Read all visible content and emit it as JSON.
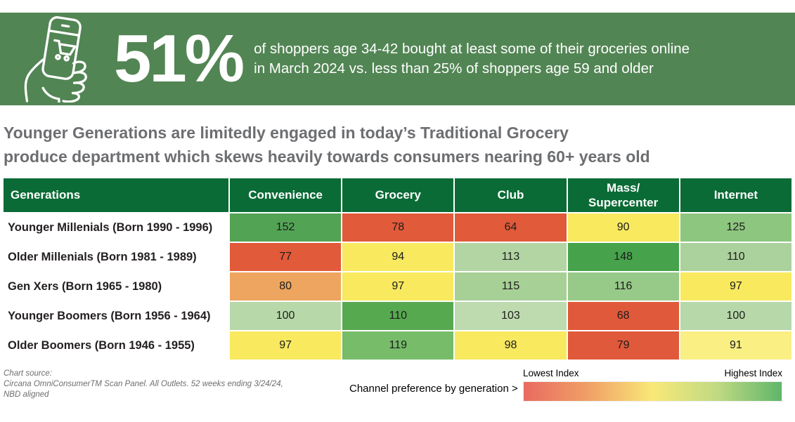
{
  "banner": {
    "stat": "51%",
    "description": "of shoppers age 34-42 bought at least some of their groceries online\nin March 2024 vs. less than 25% of shoppers age 59 and older",
    "icon": "phone-shopping-cart-icon",
    "background": "#528554"
  },
  "headline": "Younger Generations are limitedly engaged in today’s Traditional Grocery\nproduce department which skews heavily towards consumers nearing 60+ years old",
  "chart_data": {
    "type": "heatmap",
    "title": "Channel preference by generation",
    "columns": [
      "Generations",
      "Convenience",
      "Grocery",
      "Club",
      "Mass/\nSupercenter",
      "Internet"
    ],
    "rows": [
      {
        "label": "Younger Millenials (Born 1990 - 1996)",
        "values": [
          152,
          78,
          64,
          90,
          125
        ],
        "colors": [
          "#53a354",
          "#e15a39",
          "#e15a39",
          "#f8e95f",
          "#8dc67f"
        ]
      },
      {
        "label": "Older Millenials (Born 1981 - 1989)",
        "values": [
          77,
          94,
          113,
          148,
          110
        ],
        "colors": [
          "#e15a39",
          "#f8e95f",
          "#b2d5a3",
          "#46a34b",
          "#abd29c"
        ]
      },
      {
        "label": "Gen Xers (Born 1965 - 1980)",
        "values": [
          80,
          97,
          115,
          116,
          97
        ],
        "colors": [
          "#eda55f",
          "#f8e95f",
          "#a7d096",
          "#97c988",
          "#f8e95f"
        ]
      },
      {
        "label": "Younger Boomers (Born 1956 - 1964)",
        "values": [
          100,
          110,
          103,
          68,
          100
        ],
        "colors": [
          "#b7d8a9",
          "#57a950",
          "#bedbb0",
          "#e0593a",
          "#b7d8a9"
        ]
      },
      {
        "label": "Older Boomers (Born 1946 - 1955)",
        "values": [
          97,
          119,
          98,
          79,
          91
        ],
        "colors": [
          "#f8e95f",
          "#76bc69",
          "#f8e95f",
          "#e0593a",
          "#f9ef83"
        ]
      }
    ],
    "legend": {
      "lowest_label": "Lowest Index",
      "highest_label": "Highest Index",
      "gradient": [
        "#e96a60",
        "#f0a066",
        "#f8e878",
        "#c0da82",
        "#5fb66b"
      ]
    },
    "header_background": "#0a6b36"
  },
  "footer": {
    "source_lines": "Chart source:\nCircana OmniConsumerTM Scan Panel. All Outlets. 52 weeks ending 3/24/24,\nNBD aligned",
    "legend_caption": "Channel preference by generation >"
  }
}
